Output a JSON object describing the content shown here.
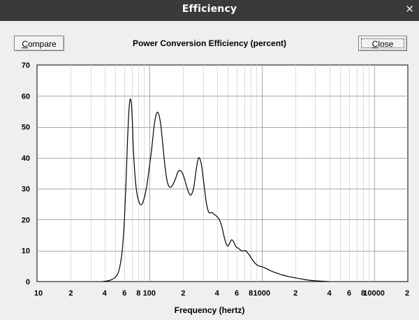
{
  "window": {
    "title": "Efficiency",
    "close_glyph": "✕"
  },
  "toolbar": {
    "compare_label_u": "C",
    "compare_label_rest": "ompare",
    "close_label_u": "C",
    "close_label_rest": "lose"
  },
  "chart_data": {
    "type": "line",
    "title": "Power Conversion Efficiency (percent)",
    "xlabel": "Frequency (hertz)",
    "ylabel": "",
    "x_scale": "log",
    "xlim": [
      10,
      20000
    ],
    "ylim": [
      0,
      70
    ],
    "y_ticks": [
      0,
      10,
      20,
      30,
      40,
      50,
      60,
      70
    ],
    "x_tick_labels": [
      {
        "value": 10,
        "label": "10"
      },
      {
        "value": 20,
        "label": "2"
      },
      {
        "value": 40,
        "label": "4"
      },
      {
        "value": 60,
        "label": "6"
      },
      {
        "value": 80,
        "label": "8"
      },
      {
        "value": 100,
        "label": "100"
      },
      {
        "value": 200,
        "label": "2"
      },
      {
        "value": 400,
        "label": "4"
      },
      {
        "value": 600,
        "label": "6"
      },
      {
        "value": 800,
        "label": "8"
      },
      {
        "value": 1000,
        "label": "1000"
      },
      {
        "value": 2000,
        "label": "2"
      },
      {
        "value": 4000,
        "label": "4"
      },
      {
        "value": 6000,
        "label": "6"
      },
      {
        "value": 8000,
        "label": "8"
      },
      {
        "value": 10000,
        "label": "10000"
      },
      {
        "value": 20000,
        "label": "2"
      }
    ],
    "grid": true,
    "series": [
      {
        "color": "#000000",
        "x": [
          38,
          42,
          46,
          50,
          53,
          56,
          58,
          60,
          62,
          64,
          66,
          68,
          70,
          72,
          75,
          78,
          82,
          86,
          90,
          95,
          100,
          105,
          110,
          115,
          120,
          126,
          132,
          138,
          145,
          152,
          160,
          170,
          180,
          190,
          200,
          210,
          220,
          230,
          240,
          250,
          262,
          275,
          290,
          305,
          320,
          330,
          340,
          350,
          360,
          370,
          385,
          400,
          420,
          440,
          460,
          480,
          500,
          520,
          540,
          560,
          580,
          600,
          620,
          640,
          660,
          680,
          700,
          720,
          740,
          760,
          780,
          800,
          830,
          860,
          900,
          950,
          1000,
          1100,
          1200,
          1300,
          1400,
          1500,
          1700,
          2000,
          2300,
          2700,
          3200,
          3700,
          4000
        ],
        "y": [
          0,
          0.2,
          0.6,
          1.5,
          3,
          7,
          12,
          20,
          32,
          46,
          56,
          59,
          55,
          43,
          33,
          28,
          25.2,
          25,
          27,
          31,
          37,
          43,
          50,
          54,
          54.5,
          51,
          44,
          37,
          32,
          30.5,
          31,
          33,
          35.5,
          35.8,
          34.5,
          32,
          29.5,
          28,
          28.5,
          31,
          36.5,
          40,
          38,
          32,
          26,
          23.5,
          22.3,
          22.2,
          22.3,
          22,
          21.5,
          21,
          20,
          18,
          15,
          12.5,
          11.5,
          12.5,
          13.5,
          13,
          11.8,
          11,
          10.8,
          10.3,
          10,
          9.8,
          10,
          10,
          9.5,
          9,
          8.5,
          7.8,
          7,
          6.2,
          5.5,
          5,
          4.8,
          4.2,
          3.5,
          3,
          2.6,
          2.2,
          1.7,
          1.2,
          0.8,
          0.4,
          0.2,
          0.05,
          0
        ]
      }
    ]
  }
}
